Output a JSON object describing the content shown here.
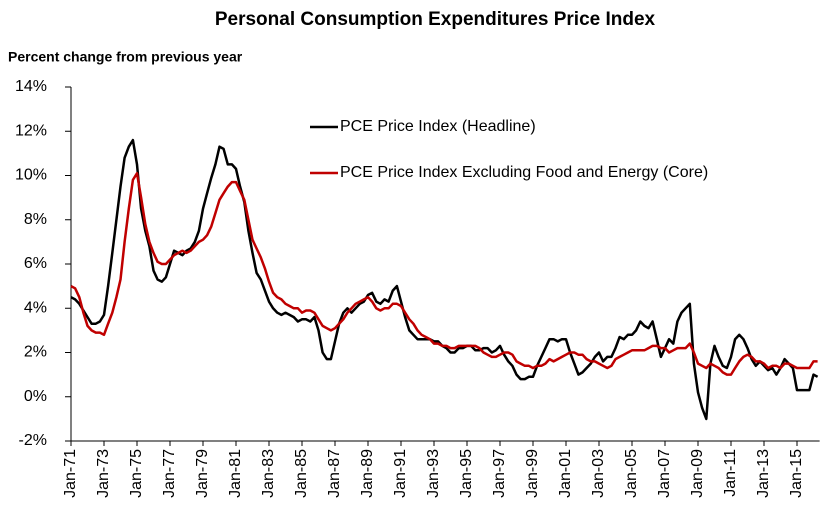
{
  "chart_data": {
    "type": "line",
    "title": "Personal Consumption Expenditures Price Index",
    "y_label": "Percent change from previous year",
    "x": [
      "Jan-71",
      "Apr-71",
      "Jul-71",
      "Oct-71",
      "Jan-72",
      "Apr-72",
      "Jul-72",
      "Oct-72",
      "Jan-73",
      "Apr-73",
      "Jul-73",
      "Oct-73",
      "Jan-74",
      "Apr-74",
      "Jul-74",
      "Oct-74",
      "Jan-75",
      "Apr-75",
      "Jul-75",
      "Oct-75",
      "Jan-76",
      "Apr-76",
      "Jul-76",
      "Oct-76",
      "Jan-77",
      "Apr-77",
      "Jul-77",
      "Oct-77",
      "Jan-78",
      "Apr-78",
      "Jul-78",
      "Oct-78",
      "Jan-79",
      "Apr-79",
      "Jul-79",
      "Oct-79",
      "Jan-80",
      "Apr-80",
      "Jul-80",
      "Oct-80",
      "Jan-81",
      "Apr-81",
      "Jul-81",
      "Oct-81",
      "Jan-82",
      "Apr-82",
      "Jul-82",
      "Oct-82",
      "Jan-83",
      "Apr-83",
      "Jul-83",
      "Oct-83",
      "Jan-84",
      "Apr-84",
      "Jul-84",
      "Oct-84",
      "Jan-85",
      "Apr-85",
      "Jul-85",
      "Oct-85",
      "Jan-86",
      "Apr-86",
      "Jul-86",
      "Oct-86",
      "Jan-87",
      "Apr-87",
      "Jul-87",
      "Oct-87",
      "Jan-88",
      "Apr-88",
      "Jul-88",
      "Oct-88",
      "Jan-89",
      "Apr-89",
      "Jul-89",
      "Oct-89",
      "Jan-90",
      "Apr-90",
      "Jul-90",
      "Oct-90",
      "Jan-91",
      "Apr-91",
      "Jul-91",
      "Oct-91",
      "Jan-92",
      "Apr-92",
      "Jul-92",
      "Oct-92",
      "Jan-93",
      "Apr-93",
      "Jul-93",
      "Oct-93",
      "Jan-94",
      "Apr-94",
      "Jul-94",
      "Oct-94",
      "Jan-95",
      "Apr-95",
      "Jul-95",
      "Oct-95",
      "Jan-96",
      "Apr-96",
      "Jul-96",
      "Oct-96",
      "Jan-97",
      "Apr-97",
      "Jul-97",
      "Oct-97",
      "Jan-98",
      "Apr-98",
      "Jul-98",
      "Oct-98",
      "Jan-99",
      "Apr-99",
      "Jul-99",
      "Oct-99",
      "Jan-00",
      "Apr-00",
      "Jul-00",
      "Oct-00",
      "Jan-01",
      "Apr-01",
      "Jul-01",
      "Oct-01",
      "Jan-02",
      "Apr-02",
      "Jul-02",
      "Oct-02",
      "Jan-03",
      "Apr-03",
      "Jul-03",
      "Oct-03",
      "Jan-04",
      "Apr-04",
      "Jul-04",
      "Oct-04",
      "Jan-05",
      "Apr-05",
      "Jul-05",
      "Oct-05",
      "Jan-06",
      "Apr-06",
      "Jul-06",
      "Oct-06",
      "Jan-07",
      "Apr-07",
      "Jul-07",
      "Oct-07",
      "Jan-08",
      "Apr-08",
      "Jul-08",
      "Oct-08",
      "Jan-09",
      "Apr-09",
      "Jul-09",
      "Oct-09",
      "Jan-10",
      "Apr-10",
      "Jul-10",
      "Oct-10",
      "Jan-11",
      "Apr-11",
      "Jul-11",
      "Oct-11",
      "Jan-12",
      "Apr-12",
      "Jul-12",
      "Oct-12",
      "Jan-13",
      "Apr-13",
      "Jul-13",
      "Oct-13",
      "Jan-14",
      "Apr-14",
      "Jul-14",
      "Oct-14",
      "Jan-15",
      "Apr-15",
      "Jul-15",
      "Oct-15",
      "Jan-16",
      "Apr-16"
    ],
    "series": [
      {
        "name": "PCE Price Index (Headline)",
        "color": "#000000",
        "values": [
          4.5,
          4.4,
          4.2,
          3.9,
          3.6,
          3.3,
          3.3,
          3.4,
          3.7,
          5.0,
          6.5,
          8.0,
          9.5,
          10.8,
          11.3,
          11.6,
          10.5,
          8.5,
          7.5,
          6.8,
          5.7,
          5.3,
          5.2,
          5.4,
          6.0,
          6.6,
          6.5,
          6.4,
          6.6,
          6.7,
          7.0,
          7.5,
          8.5,
          9.2,
          9.9,
          10.5,
          11.3,
          11.2,
          10.5,
          10.5,
          10.3,
          9.5,
          8.8,
          7.5,
          6.5,
          5.6,
          5.3,
          4.8,
          4.3,
          4.0,
          3.8,
          3.7,
          3.8,
          3.7,
          3.6,
          3.4,
          3.5,
          3.5,
          3.4,
          3.6,
          3.0,
          2.0,
          1.7,
          1.7,
          2.5,
          3.3,
          3.8,
          4.0,
          3.8,
          4.0,
          4.2,
          4.3,
          4.6,
          4.7,
          4.3,
          4.2,
          4.4,
          4.3,
          4.8,
          5.0,
          4.3,
          3.6,
          3.0,
          2.8,
          2.6,
          2.6,
          2.6,
          2.6,
          2.5,
          2.5,
          2.3,
          2.2,
          2.0,
          2.0,
          2.2,
          2.2,
          2.3,
          2.3,
          2.1,
          2.1,
          2.2,
          2.2,
          2.0,
          2.1,
          2.3,
          1.9,
          1.6,
          1.4,
          1.0,
          0.8,
          0.8,
          0.9,
          0.9,
          1.4,
          1.8,
          2.2,
          2.6,
          2.6,
          2.5,
          2.6,
          2.6,
          2.0,
          1.5,
          1.0,
          1.1,
          1.3,
          1.5,
          1.8,
          2.0,
          1.6,
          1.8,
          1.8,
          2.2,
          2.7,
          2.6,
          2.8,
          2.8,
          3.0,
          3.4,
          3.2,
          3.1,
          3.4,
          2.6,
          1.8,
          2.2,
          2.6,
          2.4,
          3.4,
          3.8,
          4.0,
          4.2,
          1.5,
          0.2,
          -0.5,
          -1.0,
          1.5,
          2.3,
          1.8,
          1.4,
          1.3,
          1.8,
          2.6,
          2.8,
          2.6,
          2.2,
          1.7,
          1.4,
          1.6,
          1.4,
          1.2,
          1.3,
          1.0,
          1.3,
          1.7,
          1.5,
          1.3,
          0.3,
          0.3,
          0.3,
          0.3,
          1.0,
          0.9
        ]
      },
      {
        "name": "PCE Price Index Excluding Food and Energy (Core)",
        "color": "#c00000",
        "values": [
          5.0,
          4.9,
          4.5,
          3.8,
          3.2,
          3.0,
          2.9,
          2.9,
          2.8,
          3.3,
          3.8,
          4.5,
          5.3,
          7.0,
          8.5,
          9.8,
          10.1,
          9.0,
          7.8,
          7.0,
          6.5,
          6.1,
          6.0,
          6.0,
          6.2,
          6.4,
          6.5,
          6.6,
          6.5,
          6.6,
          6.8,
          7.0,
          7.1,
          7.3,
          7.7,
          8.3,
          8.9,
          9.2,
          9.5,
          9.7,
          9.7,
          9.3,
          8.9,
          8.0,
          7.1,
          6.7,
          6.3,
          5.8,
          5.2,
          4.7,
          4.5,
          4.4,
          4.2,
          4.1,
          4.0,
          4.0,
          3.8,
          3.9,
          3.9,
          3.8,
          3.5,
          3.2,
          3.1,
          3.0,
          3.1,
          3.3,
          3.5,
          3.8,
          4.0,
          4.2,
          4.3,
          4.4,
          4.5,
          4.3,
          4.0,
          3.9,
          4.0,
          4.0,
          4.2,
          4.2,
          4.1,
          3.8,
          3.5,
          3.3,
          3.0,
          2.8,
          2.7,
          2.6,
          2.4,
          2.4,
          2.3,
          2.3,
          2.2,
          2.2,
          2.3,
          2.3,
          2.3,
          2.3,
          2.3,
          2.2,
          2.0,
          1.9,
          1.8,
          1.8,
          1.9,
          2.0,
          2.0,
          1.9,
          1.6,
          1.5,
          1.4,
          1.4,
          1.3,
          1.4,
          1.4,
          1.5,
          1.7,
          1.6,
          1.7,
          1.8,
          1.9,
          2.0,
          2.0,
          1.9,
          1.9,
          1.7,
          1.6,
          1.6,
          1.5,
          1.4,
          1.3,
          1.4,
          1.7,
          1.8,
          1.9,
          2.0,
          2.1,
          2.1,
          2.1,
          2.1,
          2.2,
          2.3,
          2.3,
          2.2,
          2.2,
          2.0,
          2.1,
          2.2,
          2.2,
          2.2,
          2.4,
          2.0,
          1.5,
          1.4,
          1.3,
          1.5,
          1.4,
          1.3,
          1.1,
          1.0,
          1.0,
          1.3,
          1.6,
          1.8,
          1.9,
          1.8,
          1.6,
          1.6,
          1.5,
          1.3,
          1.4,
          1.4,
          1.3,
          1.5,
          1.5,
          1.4,
          1.3,
          1.3,
          1.3,
          1.3,
          1.6,
          1.6
        ]
      }
    ],
    "xticks": [
      "Jan-71",
      "Jan-73",
      "Jan-75",
      "Jan-77",
      "Jan-79",
      "Jan-81",
      "Jan-83",
      "Jan-85",
      "Jan-87",
      "Jan-89",
      "Jan-91",
      "Jan-93",
      "Jan-95",
      "Jan-97",
      "Jan-99",
      "Jan-01",
      "Jan-03",
      "Jan-05",
      "Jan-07",
      "Jan-09",
      "Jan-11",
      "Jan-13",
      "Jan-15"
    ],
    "ylim": [
      -2,
      14
    ],
    "yticks": [
      {
        "value": -2,
        "label": "-2%"
      },
      {
        "value": 0,
        "label": "0%"
      },
      {
        "value": 2,
        "label": "2%"
      },
      {
        "value": 4,
        "label": "4%"
      },
      {
        "value": 6,
        "label": "6%"
      },
      {
        "value": 8,
        "label": "8%"
      },
      {
        "value": 10,
        "label": "10%"
      },
      {
        "value": 12,
        "label": "12%"
      },
      {
        "value": 14,
        "label": "14%"
      }
    ],
    "grid": false,
    "legend": "upper right"
  }
}
